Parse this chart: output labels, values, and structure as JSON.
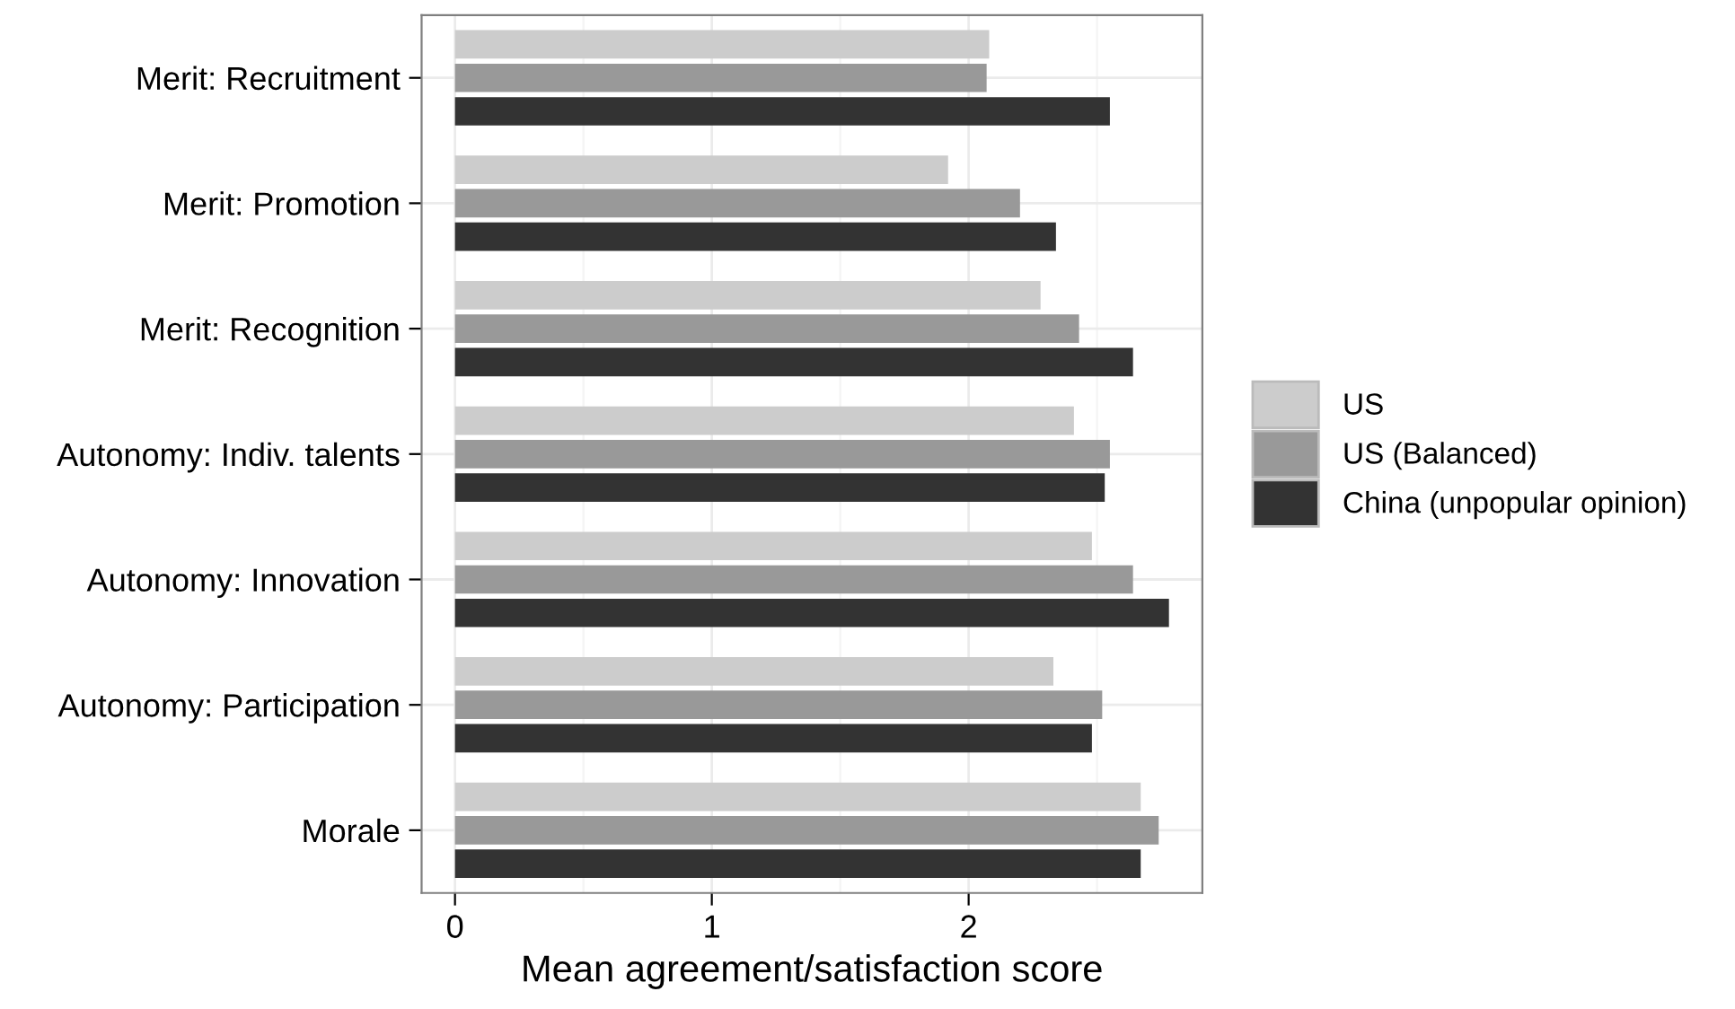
{
  "chart_data": {
    "type": "bar",
    "orientation": "horizontal",
    "xlabel": "Mean agreement/satisfaction score",
    "categories": [
      "Merit: Recruitment",
      "Merit: Promotion",
      "Merit: Recognition",
      "Autonomy: Indiv. talents",
      "Autonomy: Innovation",
      "Autonomy: Participation",
      "Morale"
    ],
    "series": [
      {
        "name": "US",
        "color": "#cccccc",
        "values": [
          2.08,
          1.92,
          2.28,
          2.41,
          2.48,
          2.33,
          2.67
        ]
      },
      {
        "name": "US (Balanced)",
        "color": "#999999",
        "values": [
          2.07,
          2.2,
          2.43,
          2.55,
          2.64,
          2.52,
          2.74
        ]
      },
      {
        "name": "China (unpopular opinion)",
        "color": "#333333",
        "values": [
          2.55,
          2.34,
          2.64,
          2.53,
          2.78,
          2.48,
          2.67
        ]
      }
    ],
    "xlim": [
      -0.13,
      2.91
    ],
    "xticks": [
      0,
      1,
      2
    ],
    "grid": true,
    "legend": "right"
  }
}
